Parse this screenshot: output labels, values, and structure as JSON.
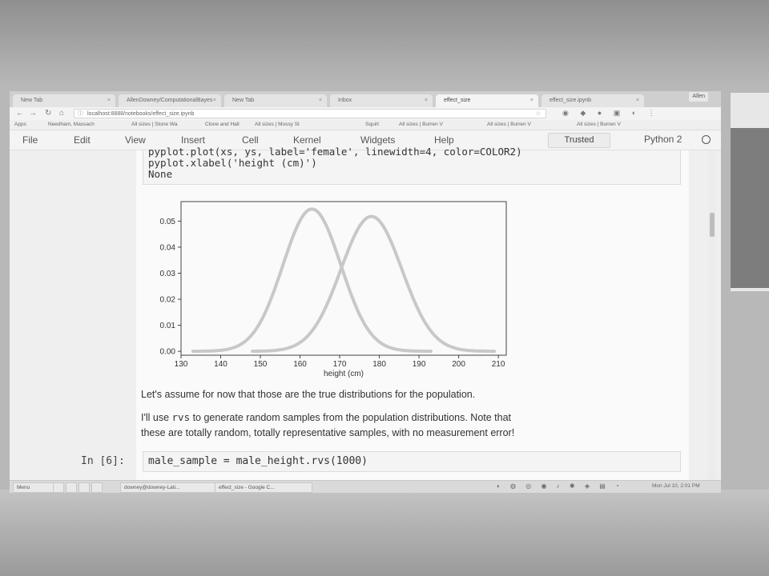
{
  "browser": {
    "tabs": [
      {
        "label": "New Tab"
      },
      {
        "label": "AllenDowney/ComputationalBayes"
      },
      {
        "label": "New Tab"
      },
      {
        "label": "Inbox"
      },
      {
        "label": "effect_size",
        "active": true
      },
      {
        "label": "effect_size.ipynb"
      }
    ],
    "window_user": "Allen",
    "url": "localhost:8888/notebooks/effect_size.ipynb",
    "bookmarks": [
      "Apps",
      "Needham, Massach",
      "All sizes | Stone Wa",
      "Clone and Hall",
      "All sizes | Mossy St",
      "Squirt",
      "All sizes | Burren V",
      "All sizes | Burren V",
      "All sizes | Burren V"
    ]
  },
  "menubar": {
    "items": [
      "File",
      "Edit",
      "View",
      "Insert",
      "Cell",
      "Kernel",
      "Widgets",
      "Help"
    ],
    "trusted": "Trusted",
    "kernel": "Python 2"
  },
  "notebook": {
    "prev_code": {
      "line1": "pyplot.plot(xs, ys, label='female', linewidth=4, color=COLOR2)",
      "line2": "pyplot.xlabel('height (cm)')",
      "output": "None"
    },
    "markdown1": "Let's assume for now that those are the true distributions for the population.",
    "markdown2": {
      "before": "I'll use ",
      "code": "rvs",
      "after": " to generate random samples from the population distributions. Note that",
      "line2": "these are totally random, totally representative samples, with no measurement error!"
    },
    "cell": {
      "prompt": "In [6]:",
      "code": "male_sample = male_height.rvs(1000)"
    }
  },
  "taskbar": {
    "items": [
      "Menu",
      "downey@downey-Lati...",
      "effect_size - Google C..."
    ],
    "clock": "Mon Jul 10,  2:01 PM"
  },
  "chart_data": {
    "type": "line",
    "xlabel": "height (cm)",
    "ylabel": "",
    "xlim": [
      130,
      212
    ],
    "ylim": [
      -0.0015,
      0.0575
    ],
    "xticks": [
      130,
      140,
      150,
      160,
      170,
      180,
      190,
      200,
      210
    ],
    "yticks": [
      0.0,
      0.01,
      0.02,
      0.03,
      0.04,
      0.05
    ],
    "ytick_labels": [
      "0.00",
      "0.01",
      "0.02",
      "0.03",
      "0.04",
      "0.05"
    ],
    "grid": false,
    "series": [
      {
        "mean": 163,
        "sd": 7.3,
        "x_range": [
          133,
          193
        ],
        "color": "#c8c8c8"
      },
      {
        "mean": 178,
        "sd": 7.7,
        "x_range": [
          148,
          209
        ],
        "color": "#c8c8c8"
      }
    ]
  }
}
